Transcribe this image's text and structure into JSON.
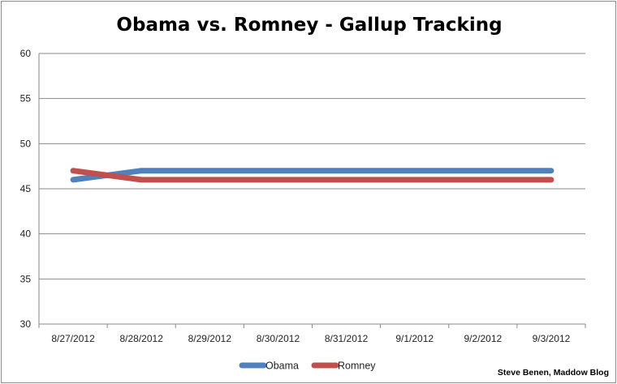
{
  "chart_data": {
    "type": "line",
    "title": "Obama vs. Romney - Gallup Tracking",
    "xlabel": "",
    "ylabel": "",
    "categories": [
      "8/27/2012",
      "8/28/2012",
      "8/29/2012",
      "8/30/2012",
      "8/31/2012",
      "9/1/2012",
      "9/2/2012",
      "9/3/2012"
    ],
    "series": [
      {
        "name": "Obama",
        "values": [
          46,
          47,
          47,
          47,
          47,
          47,
          47,
          47
        ],
        "color": "#4f81bd"
      },
      {
        "name": "Romney",
        "values": [
          47,
          46,
          46,
          46,
          46,
          46,
          46,
          46
        ],
        "color": "#c0504d"
      }
    ],
    "ylim": [
      30,
      60
    ],
    "yticks": [
      30,
      35,
      40,
      45,
      50,
      55,
      60
    ],
    "grid": true,
    "legend_position": "bottom"
  },
  "credit": "Steve Benen, Maddow Blog"
}
